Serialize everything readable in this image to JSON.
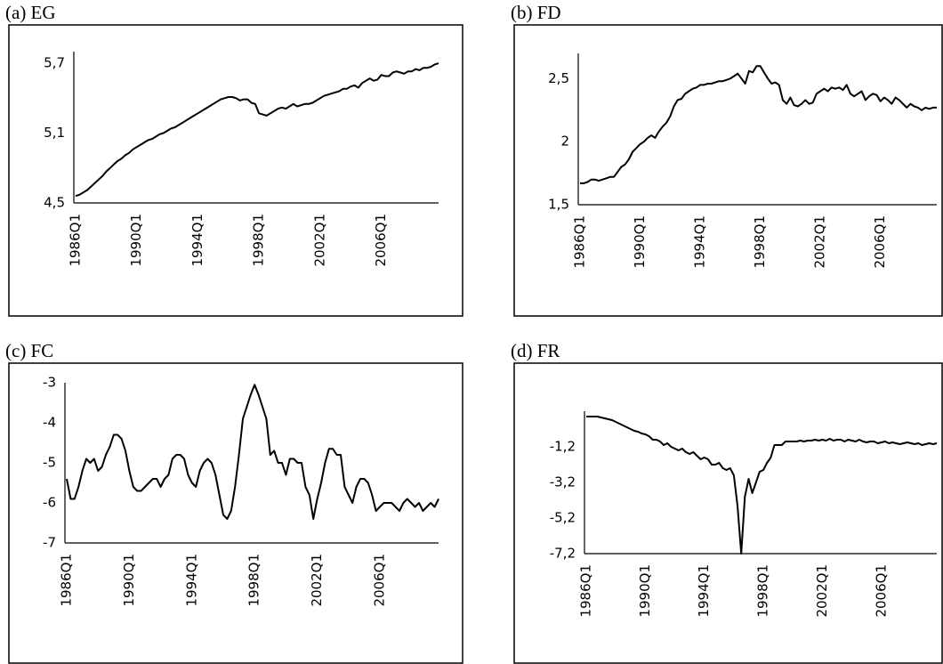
{
  "chart_data": [
    {
      "type": "line",
      "title": "(a) EG",
      "color": "#000000",
      "categories": [
        "1986Q1",
        null,
        null,
        null,
        null,
        null,
        null,
        null,
        null,
        null,
        null,
        null,
        null,
        null,
        null,
        null,
        "1990Q1",
        null,
        null,
        null,
        null,
        null,
        null,
        null,
        null,
        null,
        null,
        null,
        null,
        null,
        null,
        null,
        "1994Q1",
        null,
        null,
        null,
        null,
        null,
        null,
        null,
        null,
        null,
        null,
        null,
        null,
        null,
        null,
        null,
        "1998Q1",
        null,
        null,
        null,
        null,
        null,
        null,
        null,
        null,
        null,
        null,
        null,
        null,
        null,
        null,
        null,
        "2002Q1",
        null,
        null,
        null,
        null,
        null,
        null,
        null,
        null,
        null,
        null,
        null,
        null,
        null,
        null,
        null,
        "2006Q1",
        null,
        null,
        null,
        null,
        null,
        null,
        null,
        null,
        null,
        null,
        null,
        null,
        null,
        null,
        null
      ],
      "values": [
        4.56,
        4.57,
        4.59,
        4.61,
        4.64,
        4.67,
        4.7,
        4.73,
        4.77,
        4.8,
        4.83,
        4.86,
        4.88,
        4.91,
        4.93,
        4.96,
        4.98,
        5.0,
        5.02,
        5.04,
        5.05,
        5.07,
        5.09,
        5.1,
        5.12,
        5.14,
        5.15,
        5.17,
        5.19,
        5.21,
        5.23,
        5.25,
        5.27,
        5.29,
        5.31,
        5.33,
        5.35,
        5.37,
        5.39,
        5.4,
        5.41,
        5.41,
        5.4,
        5.38,
        5.39,
        5.39,
        5.36,
        5.35,
        5.27,
        5.26,
        5.25,
        5.27,
        5.29,
        5.31,
        5.32,
        5.31,
        5.33,
        5.35,
        5.33,
        5.34,
        5.35,
        5.35,
        5.36,
        5.38,
        5.4,
        5.42,
        5.43,
        5.44,
        5.45,
        5.46,
        5.48,
        5.48,
        5.5,
        5.51,
        5.49,
        5.53,
        5.55,
        5.57,
        5.55,
        5.56,
        5.6,
        5.59,
        5.59,
        5.62,
        5.63,
        5.62,
        5.61,
        5.63,
        5.63,
        5.65,
        5.64,
        5.66,
        5.66,
        5.67,
        5.69,
        5.7
      ],
      "ylim": [
        4.5,
        5.8
      ],
      "yticks": [
        {
          "value": 4.5,
          "label": "4,5"
        },
        {
          "value": 5.1,
          "label": "5,1"
        },
        {
          "value": 5.7,
          "label": "5,7"
        }
      ]
    },
    {
      "type": "line",
      "title": "(b) FD",
      "color": "#000000",
      "categories": [
        "1986Q1",
        null,
        null,
        null,
        null,
        null,
        null,
        null,
        null,
        null,
        null,
        null,
        null,
        null,
        null,
        null,
        "1990Q1",
        null,
        null,
        null,
        null,
        null,
        null,
        null,
        null,
        null,
        null,
        null,
        null,
        null,
        null,
        null,
        "1994Q1",
        null,
        null,
        null,
        null,
        null,
        null,
        null,
        null,
        null,
        null,
        null,
        null,
        null,
        null,
        null,
        "1998Q1",
        null,
        null,
        null,
        null,
        null,
        null,
        null,
        null,
        null,
        null,
        null,
        null,
        null,
        null,
        null,
        "2002Q1",
        null,
        null,
        null,
        null,
        null,
        null,
        null,
        null,
        null,
        null,
        null,
        null,
        null,
        null,
        null,
        "2006Q1",
        null,
        null,
        null,
        null,
        null,
        null,
        null,
        null,
        null,
        null,
        null,
        null,
        null,
        null,
        null
      ],
      "values": [
        1.67,
        1.67,
        1.68,
        1.7,
        1.7,
        1.69,
        1.7,
        1.71,
        1.72,
        1.72,
        1.76,
        1.8,
        1.82,
        1.86,
        1.92,
        1.95,
        1.98,
        2.0,
        2.03,
        2.05,
        2.03,
        2.08,
        2.12,
        2.15,
        2.2,
        2.28,
        2.33,
        2.34,
        2.38,
        2.4,
        2.42,
        2.43,
        2.45,
        2.45,
        2.46,
        2.46,
        2.47,
        2.48,
        2.48,
        2.49,
        2.5,
        2.52,
        2.54,
        2.5,
        2.46,
        2.56,
        2.55,
        2.6,
        2.6,
        2.55,
        2.5,
        2.46,
        2.47,
        2.45,
        2.33,
        2.3,
        2.35,
        2.29,
        2.28,
        2.3,
        2.33,
        2.3,
        2.31,
        2.38,
        2.4,
        2.42,
        2.4,
        2.43,
        2.42,
        2.43,
        2.41,
        2.45,
        2.38,
        2.36,
        2.38,
        2.4,
        2.33,
        2.36,
        2.38,
        2.37,
        2.32,
        2.35,
        2.33,
        2.3,
        2.35,
        2.33,
        2.3,
        2.27,
        2.3,
        2.28,
        2.27,
        2.25,
        2.27,
        2.26,
        2.27,
        2.27
      ],
      "ylim": [
        1.5,
        2.7
      ],
      "yticks": [
        {
          "value": 1.5,
          "label": "1,5"
        },
        2,
        {
          "value": 2.5,
          "label": "2,5"
        }
      ]
    },
    {
      "type": "line",
      "title": "(c) FC",
      "color": "#000000",
      "categories": [
        "1986Q1",
        null,
        null,
        null,
        null,
        null,
        null,
        null,
        null,
        null,
        null,
        null,
        null,
        null,
        null,
        null,
        "1990Q1",
        null,
        null,
        null,
        null,
        null,
        null,
        null,
        null,
        null,
        null,
        null,
        null,
        null,
        null,
        null,
        "1994Q1",
        null,
        null,
        null,
        null,
        null,
        null,
        null,
        null,
        null,
        null,
        null,
        null,
        null,
        null,
        null,
        "1998Q1",
        null,
        null,
        null,
        null,
        null,
        null,
        null,
        null,
        null,
        null,
        null,
        null,
        null,
        null,
        null,
        "2002Q1",
        null,
        null,
        null,
        null,
        null,
        null,
        null,
        null,
        null,
        null,
        null,
        null,
        null,
        null,
        null,
        "2006Q1",
        null,
        null,
        null,
        null,
        null,
        null,
        null,
        null,
        null,
        null,
        null,
        null,
        null,
        null,
        null
      ],
      "values": [
        -5.4,
        -5.9,
        -5.9,
        -5.6,
        -5.2,
        -4.9,
        -5.0,
        -4.9,
        -5.2,
        -5.1,
        -4.8,
        -4.6,
        -4.3,
        -4.3,
        -4.4,
        -4.7,
        -5.2,
        -5.6,
        -5.7,
        -5.7,
        -5.6,
        -5.5,
        -5.4,
        -5.4,
        -5.6,
        -5.4,
        -5.3,
        -4.9,
        -4.8,
        -4.8,
        -4.9,
        -5.3,
        -5.5,
        -5.6,
        -5.2,
        -5.0,
        -4.9,
        -5.0,
        -5.3,
        -5.8,
        -6.3,
        -6.4,
        -6.2,
        -5.6,
        -4.8,
        -3.9,
        -3.6,
        -3.3,
        -3.05,
        -3.3,
        -3.6,
        -3.9,
        -4.8,
        -4.7,
        -5.0,
        -5.0,
        -5.3,
        -4.9,
        -4.9,
        -5.0,
        -5.0,
        -5.6,
        -5.8,
        -6.4,
        -5.9,
        -5.5,
        -5.0,
        -4.65,
        -4.65,
        -4.8,
        -4.8,
        -5.6,
        -5.8,
        -6.0,
        -5.6,
        -5.4,
        -5.4,
        -5.5,
        -5.8,
        -6.2,
        -6.1,
        -6.0,
        -6.0,
        -6.0,
        -6.1,
        -6.2,
        -6.0,
        -5.9,
        -6.0,
        -6.1,
        -6.0,
        -6.2,
        -6.1,
        -6.0,
        -6.1,
        -5.9
      ],
      "ylim": [
        -7,
        -3
      ],
      "yticks": [
        -7,
        -6,
        -5,
        -4,
        -3
      ]
    },
    {
      "type": "line",
      "title": "(d) FR",
      "color": "#000000",
      "categories": [
        "1986Q1",
        null,
        null,
        null,
        null,
        null,
        null,
        null,
        null,
        null,
        null,
        null,
        null,
        null,
        null,
        null,
        "1990Q1",
        null,
        null,
        null,
        null,
        null,
        null,
        null,
        null,
        null,
        null,
        null,
        null,
        null,
        null,
        null,
        "1994Q1",
        null,
        null,
        null,
        null,
        null,
        null,
        null,
        null,
        null,
        null,
        null,
        null,
        null,
        null,
        null,
        "1998Q1",
        null,
        null,
        null,
        null,
        null,
        null,
        null,
        null,
        null,
        null,
        null,
        null,
        null,
        null,
        null,
        "2002Q1",
        null,
        null,
        null,
        null,
        null,
        null,
        null,
        null,
        null,
        null,
        null,
        null,
        null,
        null,
        null,
        "2006Q1",
        null,
        null,
        null,
        null,
        null,
        null,
        null,
        null,
        null,
        null,
        null,
        null,
        null,
        null,
        null
      ],
      "values": [
        0.5,
        0.5,
        0.5,
        0.5,
        0.45,
        0.4,
        0.35,
        0.3,
        0.2,
        0.1,
        0.0,
        -0.1,
        -0.2,
        -0.3,
        -0.35,
        -0.45,
        -0.5,
        -0.6,
        -0.8,
        -0.8,
        -0.9,
        -1.1,
        -1.0,
        -1.2,
        -1.3,
        -1.4,
        -1.3,
        -1.5,
        -1.6,
        -1.5,
        -1.7,
        -1.9,
        -1.8,
        -1.9,
        -2.2,
        -2.2,
        -2.1,
        -2.4,
        -2.5,
        -2.4,
        -2.8,
        -4.5,
        -7.2,
        -4.0,
        -3.0,
        -3.8,
        -3.2,
        -2.6,
        -2.5,
        -2.1,
        -1.8,
        -1.1,
        -1.1,
        -1.1,
        -0.9,
        -0.9,
        -0.9,
        -0.9,
        -0.85,
        -0.9,
        -0.85,
        -0.85,
        -0.8,
        -0.85,
        -0.8,
        -0.85,
        -0.75,
        -0.85,
        -0.8,
        -0.8,
        -0.9,
        -0.8,
        -0.85,
        -0.9,
        -0.8,
        -0.9,
        -0.95,
        -0.9,
        -0.9,
        -1.0,
        -0.95,
        -0.9,
        -1.0,
        -0.95,
        -1.0,
        -1.05,
        -1.0,
        -0.95,
        -1.0,
        -1.05,
        -1.0,
        -1.1,
        -1.05,
        -1.0,
        -1.05,
        -1.0
      ],
      "ylim": [
        -7.2,
        0.8
      ],
      "yticks": [
        {
          "value": -7.2,
          "label": "-7,2"
        },
        {
          "value": -5.2,
          "label": "-5,2"
        },
        {
          "value": -3.2,
          "label": "-3,2"
        },
        {
          "value": -1.2,
          "label": "-1,2"
        }
      ]
    }
  ]
}
